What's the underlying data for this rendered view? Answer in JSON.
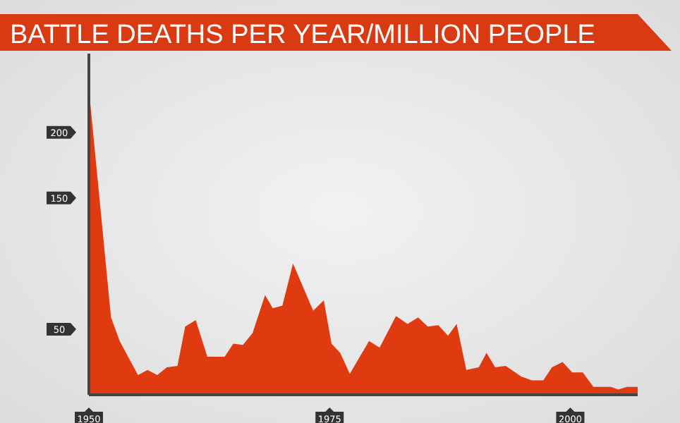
{
  "chart_data": {
    "type": "area",
    "title": "BATTLE DEATHS PER YEAR/MILLION PEOPLE",
    "color": "#e03a10",
    "x": [
      1950,
      1952.3,
      1953.2,
      1955.1,
      1956.1,
      1957.1,
      1958.1,
      1959.2,
      1960,
      1961.1,
      1962.3,
      1964.1,
      1965,
      1966,
      1967,
      1968.3,
      1969.1,
      1970.1,
      1971.2,
      1973.3,
      1974.4,
      1975.2,
      1976.1,
      1977.1,
      1979.1,
      1980.2,
      1981.9,
      1983.1,
      1984.2,
      1985.2,
      1986.3,
      1987.3,
      1988.2,
      1989.2,
      1990.5,
      1991.3,
      1992.2,
      1993.3,
      1994.9,
      1996,
      1997.2,
      1998.1,
      1999.2,
      2000.2,
      2001.3,
      2002.4,
      2004.2,
      2005,
      2005.9,
      2007
    ],
    "values": [
      233,
      59,
      41,
      15,
      19,
      15,
      21,
      22,
      52,
      57,
      29,
      29,
      39,
      38,
      47,
      76,
      66,
      68,
      100,
      64,
      72,
      39,
      32,
      16,
      41,
      36,
      60,
      54,
      59,
      52,
      53,
      45,
      54,
      19,
      21,
      32,
      21,
      22,
      14,
      11,
      11,
      21,
      25,
      17,
      17,
      6,
      6,
      4,
      6,
      6
    ],
    "xlim": [
      1950,
      2007
    ],
    "xticks": [
      1950,
      1975,
      2000
    ],
    "ylim": [
      0,
      260
    ],
    "yticks": [
      50,
      150,
      200
    ],
    "grid": false,
    "legend": false
  }
}
